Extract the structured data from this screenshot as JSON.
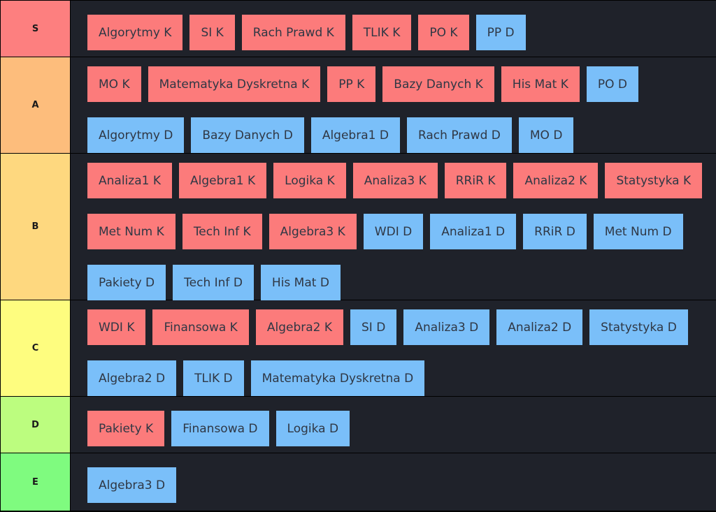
{
  "colors": {
    "k_item": "#fc7b7b",
    "d_item": "#7abff9",
    "tier_S": "#fd7f7f",
    "tier_A": "#fdbd7c",
    "tier_B": "#fed87f",
    "tier_C": "#fefd7f",
    "tier_D": "#bcfd7f",
    "tier_E": "#7ffb7f"
  },
  "tiers": [
    {
      "label": "S",
      "items": [
        {
          "text": "Algorytmy K",
          "kind": "K"
        },
        {
          "text": "SI K",
          "kind": "K"
        },
        {
          "text": "Rach Prawd K",
          "kind": "K"
        },
        {
          "text": "TLIK K",
          "kind": "K"
        },
        {
          "text": "PO K",
          "kind": "K"
        },
        {
          "text": "PP D",
          "kind": "D"
        }
      ]
    },
    {
      "label": "A",
      "items": [
        {
          "text": "MO K",
          "kind": "K"
        },
        {
          "text": "Matematyka Dyskretna K",
          "kind": "K"
        },
        {
          "text": "PP K",
          "kind": "K"
        },
        {
          "text": "Bazy Danych K",
          "kind": "K"
        },
        {
          "text": "His Mat K",
          "kind": "K"
        },
        {
          "text": "PO D",
          "kind": "D"
        },
        {
          "text": "Algorytmy D",
          "kind": "D"
        },
        {
          "text": "Bazy Danych D",
          "kind": "D"
        },
        {
          "text": "Algebra1 D",
          "kind": "D"
        },
        {
          "text": "Rach Prawd D",
          "kind": "D"
        },
        {
          "text": "MO D",
          "kind": "D"
        }
      ]
    },
    {
      "label": "B",
      "items": [
        {
          "text": "Analiza1 K",
          "kind": "K"
        },
        {
          "text": "Algebra1 K",
          "kind": "K"
        },
        {
          "text": "Logika K",
          "kind": "K"
        },
        {
          "text": "Analiza3 K",
          "kind": "K"
        },
        {
          "text": "RRiR K",
          "kind": "K"
        },
        {
          "text": "Analiza2 K",
          "kind": "K"
        },
        {
          "text": "Statystyka K",
          "kind": "K"
        },
        {
          "text": "Met Num K",
          "kind": "K"
        },
        {
          "text": "Tech Inf K",
          "kind": "K"
        },
        {
          "text": "Algebra3 K",
          "kind": "K"
        },
        {
          "text": "WDI D",
          "kind": "D"
        },
        {
          "text": "Analiza1 D",
          "kind": "D"
        },
        {
          "text": "RRiR D",
          "kind": "D"
        },
        {
          "text": "Met Num D",
          "kind": "D"
        },
        {
          "text": "Pakiety D",
          "kind": "D"
        },
        {
          "text": "Tech Inf D",
          "kind": "D"
        },
        {
          "text": "His Mat D",
          "kind": "D"
        }
      ]
    },
    {
      "label": "C",
      "items": [
        {
          "text": "WDI K",
          "kind": "K"
        },
        {
          "text": "Finansowa K",
          "kind": "K"
        },
        {
          "text": "Algebra2 K",
          "kind": "K"
        },
        {
          "text": "SI D",
          "kind": "D"
        },
        {
          "text": "Analiza3 D",
          "kind": "D"
        },
        {
          "text": "Analiza2 D",
          "kind": "D"
        },
        {
          "text": "Statystyka D",
          "kind": "D"
        },
        {
          "text": "Algebra2 D",
          "kind": "D"
        },
        {
          "text": "TLIK D",
          "kind": "D"
        },
        {
          "text": "Matematyka Dyskretna D",
          "kind": "D"
        }
      ]
    },
    {
      "label": "D",
      "items": [
        {
          "text": "Pakiety K",
          "kind": "K"
        },
        {
          "text": "Finansowa D",
          "kind": "D"
        },
        {
          "text": "Logika D",
          "kind": "D"
        }
      ]
    },
    {
      "label": "E",
      "items": [
        {
          "text": "Algebra3 D",
          "kind": "D"
        }
      ]
    }
  ]
}
